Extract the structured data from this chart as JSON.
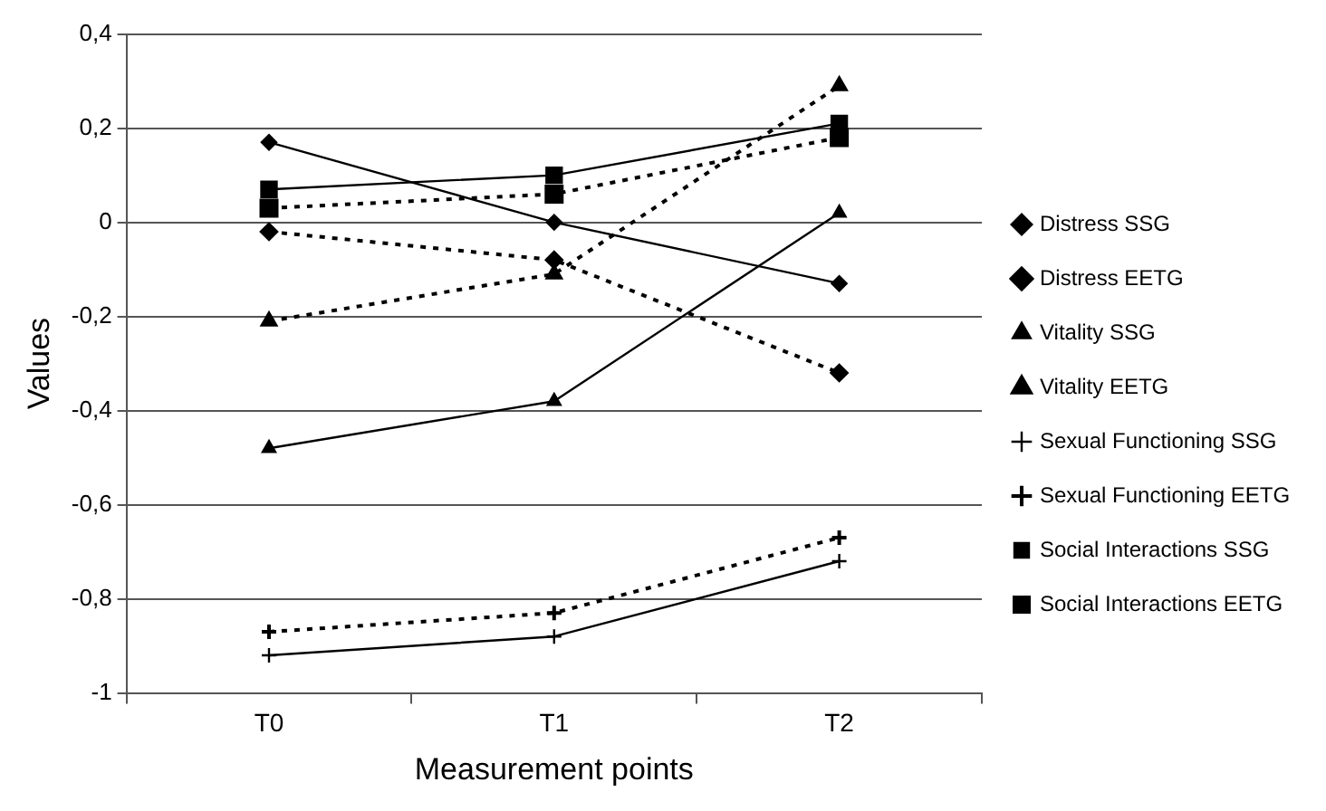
{
  "chart_data": {
    "type": "line",
    "xlabel": "Measurement points",
    "ylabel": "Values",
    "categories": [
      "T0",
      "T1",
      "T2"
    ],
    "series": [
      {
        "name": "Distress SSG",
        "color": "#000000",
        "marker": "diamond",
        "line_style": "solid",
        "values": [
          0.17,
          0.0,
          -0.13
        ]
      },
      {
        "name": "Distress EETG",
        "color": "#000000",
        "marker": "diamond",
        "line_style": "dotted",
        "values": [
          -0.02,
          -0.08,
          -0.32
        ]
      },
      {
        "name": "Vitality SSG",
        "color": "#000000",
        "marker": "triangle",
        "line_style": "solid",
        "values": [
          -0.48,
          -0.38,
          0.02
        ]
      },
      {
        "name": "Vitality EETG",
        "color": "#000000",
        "marker": "triangle",
        "line_style": "dotted",
        "values": [
          -0.21,
          -0.11,
          0.29
        ]
      },
      {
        "name": "Sexual Functioning SSG",
        "color": "#000000",
        "marker": "cross",
        "line_style": "solid",
        "values": [
          -0.92,
          -0.88,
          -0.72
        ]
      },
      {
        "name": "Sexual Functioning EETG",
        "color": "#000000",
        "marker": "cross",
        "line_style": "dotted",
        "values": [
          -0.87,
          -0.83,
          -0.67
        ]
      },
      {
        "name": "Social Interactions SSG",
        "color": "#000000",
        "marker": "square",
        "line_style": "solid",
        "values": [
          0.07,
          0.1,
          0.21
        ]
      },
      {
        "name": "Social Interactions EETG",
        "color": "#000000",
        "marker": "square",
        "line_style": "dotted",
        "values": [
          0.03,
          0.06,
          0.18
        ]
      }
    ],
    "ylim": [
      -1,
      0.4
    ],
    "yticks": [
      {
        "value": -1,
        "label": "-1"
      },
      {
        "value": -0.8,
        "label": "-0,8"
      },
      {
        "value": -0.6,
        "label": "-0,6"
      },
      {
        "value": -0.4,
        "label": "-0,4"
      },
      {
        "value": -0.2,
        "label": "-0,2"
      },
      {
        "value": 0,
        "label": "0"
      },
      {
        "value": 0.2,
        "label": "0,2"
      },
      {
        "value": 0.4,
        "label": "0,4"
      }
    ],
    "grid": "y",
    "legend": "right"
  }
}
